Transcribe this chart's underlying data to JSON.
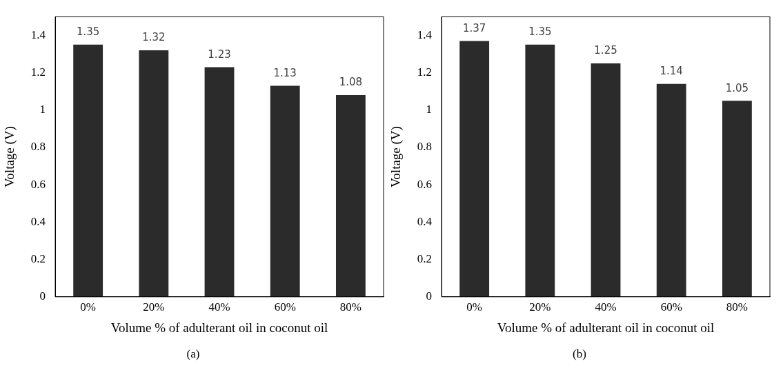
{
  "chart_data": [
    {
      "type": "bar",
      "xlabel": "Volume % of adulterant oil in coconut oil",
      "ylabel": "Voltage (V)",
      "categories": [
        "0%",
        "20%",
        "40%",
        "60%",
        "80%"
      ],
      "values": [
        1.35,
        1.32,
        1.23,
        1.13,
        1.08
      ],
      "color": "#2b2b2b",
      "ylim": [
        0,
        1.5
      ],
      "yticks": [
        0,
        0.2,
        0.4,
        0.6,
        0.8,
        1,
        1.2,
        1.4
      ],
      "grid": false,
      "legend": false,
      "data_labels": true,
      "annotations": [
        "(a)"
      ]
    },
    {
      "type": "bar",
      "xlabel": "Volume % of adulterant oil in coconut oil",
      "ylabel": "Voltage (V)",
      "categories": [
        "0%",
        "20%",
        "40%",
        "60%",
        "80%"
      ],
      "values": [
        1.37,
        1.35,
        1.25,
        1.14,
        1.05
      ],
      "color": "#2b2b2b",
      "ylim": [
        0,
        1.5
      ],
      "yticks": [
        0,
        0.2,
        0.4,
        0.6,
        0.8,
        1,
        1.2,
        1.4
      ],
      "grid": false,
      "legend": false,
      "data_labels": true,
      "annotations": [
        "(b)"
      ]
    }
  ]
}
